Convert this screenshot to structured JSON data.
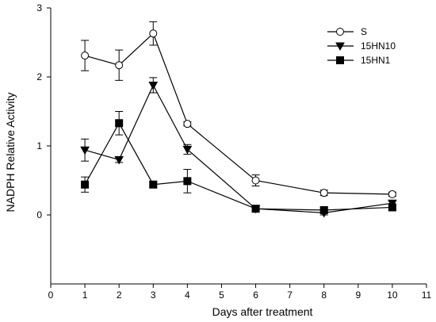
{
  "chart_data": {
    "type": "line",
    "title": "",
    "xlabel": "Days after treatment",
    "ylabel": "NADPH Relative Activity",
    "xlim": [
      0,
      11
    ],
    "ylim": [
      -1,
      3
    ],
    "x_ticks": [
      0,
      1,
      2,
      3,
      4,
      5,
      6,
      7,
      8,
      9,
      10,
      11
    ],
    "y_ticks": [
      0,
      1,
      2,
      3
    ],
    "grid": false,
    "legend_position": "top-right",
    "series": [
      {
        "name": "S",
        "marker": "open-circle",
        "x": [
          1,
          2,
          3,
          4,
          6,
          8,
          10
        ],
        "y": [
          2.31,
          2.17,
          2.63,
          1.32,
          0.5,
          0.32,
          0.3
        ],
        "error": [
          0.22,
          0.22,
          0.17,
          0.03,
          0.08,
          0.04,
          0.03
        ]
      },
      {
        "name": "15HN10",
        "marker": "filled-triangle-down",
        "x": [
          1,
          2,
          3,
          4,
          6,
          8,
          10
        ],
        "y": [
          0.94,
          0.8,
          1.88,
          0.95,
          0.09,
          0.03,
          0.17
        ],
        "error": [
          0.16,
          0.04,
          0.11,
          0.07,
          0.03,
          0.03,
          0.03
        ]
      },
      {
        "name": "15HN1",
        "marker": "filled-square",
        "x": [
          1,
          2,
          3,
          4,
          6,
          8,
          10
        ],
        "y": [
          0.44,
          1.33,
          0.44,
          0.49,
          0.09,
          0.07,
          0.11
        ],
        "error": [
          0.11,
          0.17,
          0.04,
          0.17,
          0.03,
          0.04,
          0.04
        ]
      }
    ]
  }
}
